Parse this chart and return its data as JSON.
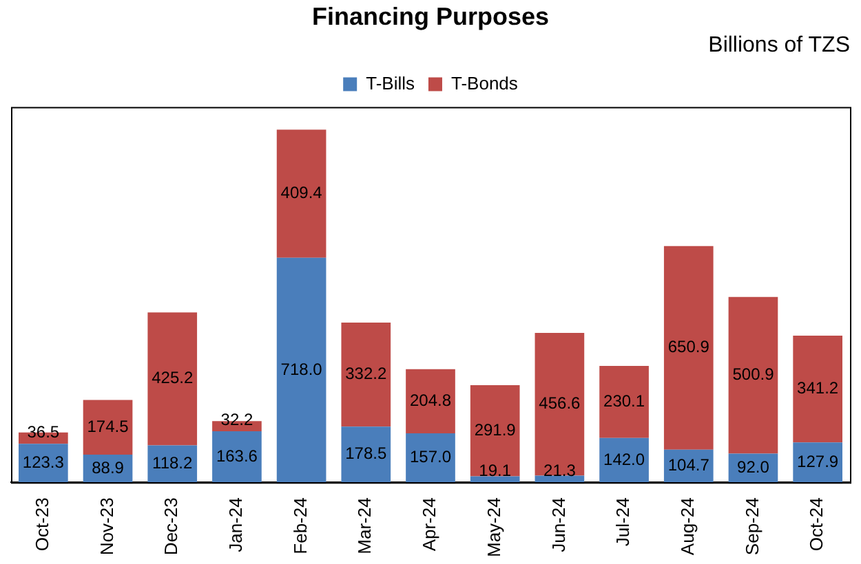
{
  "chart_data": {
    "type": "bar",
    "title": "Financing Purposes",
    "subtitle": "Billions of TZS",
    "categories": [
      "Oct-23",
      "Nov-23",
      "Dec-23",
      "Jan-24",
      "Feb-24",
      "Mar-24",
      "Apr-24",
      "May-24",
      "Jun-24",
      "Jul-24",
      "Aug-24",
      "Sep-24",
      "Oct-24"
    ],
    "series": [
      {
        "name": "T-Bills",
        "color": "#4a7ebb",
        "values": [
          123.3,
          88.9,
          118.2,
          163.6,
          718,
          178.5,
          157,
          19.1,
          21.3,
          142,
          104.7,
          92,
          127.9
        ],
        "value_labels": [
          "123.3",
          "88.9",
          "118.2",
          "163.6",
          "718.0",
          "178.5",
          "157.0",
          "19.1",
          "21.3",
          "142.0",
          "104.7",
          "92.0",
          "127.9"
        ]
      },
      {
        "name": "T-Bonds",
        "color": "#be4b48",
        "values": [
          36.5,
          174.5,
          425.2,
          32.2,
          409.4,
          332.2,
          204.8,
          291.9,
          456.6,
          230.1,
          650.9,
          500.9,
          341.2
        ],
        "value_labels": [
          "36.5",
          "174.5",
          "425.2",
          "32.2",
          "409.4",
          "332.2",
          "204.8",
          "291.9",
          "456.6",
          "230.1",
          "650.9",
          "500.9",
          "341.2"
        ]
      }
    ],
    "stacked": true,
    "tick_labels": "x",
    "legend": "top"
  }
}
